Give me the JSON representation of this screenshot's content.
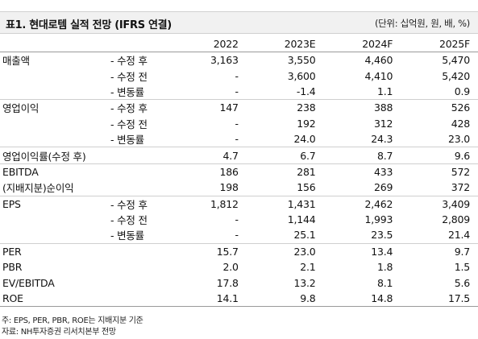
{
  "header": {
    "title": "표1. 현대로템 실적 전망 (IFRS 연결)",
    "unit": "(단위: 십억원, 원, 배, %)"
  },
  "columns": [
    "2022",
    "2023E",
    "2024F",
    "2025F"
  ],
  "rows": [
    {
      "label": "매출액",
      "sub": "- 수정 후",
      "values": [
        "3,163",
        "3,550",
        "4,460",
        "5,470"
      ]
    },
    {
      "label": "",
      "sub": "- 수정 전",
      "values": [
        "-",
        "3,600",
        "4,410",
        "5,420"
      ]
    },
    {
      "label": "",
      "sub": "- 변동률",
      "values": [
        "-",
        "-1.4",
        "1.1",
        "0.9"
      ]
    },
    {
      "label": "영업이익",
      "sub": "- 수정 후",
      "values": [
        "147",
        "238",
        "388",
        "526"
      ]
    },
    {
      "label": "",
      "sub": "- 수정 전",
      "values": [
        "-",
        "192",
        "312",
        "428"
      ]
    },
    {
      "label": "",
      "sub": "- 변동률",
      "values": [
        "-",
        "24.0",
        "24.3",
        "23.0"
      ]
    },
    {
      "label": "영업이익률(수정 후)",
      "sub": "",
      "values": [
        "4.7",
        "6.7",
        "8.7",
        "9.6"
      ]
    },
    {
      "label": "EBITDA",
      "sub": "",
      "values": [
        "186",
        "281",
        "433",
        "572"
      ]
    },
    {
      "label": "(지배지분)순이익",
      "sub": "",
      "values": [
        "198",
        "156",
        "269",
        "372"
      ]
    },
    {
      "label": "EPS",
      "sub": "- 수정 후",
      "values": [
        "1,812",
        "1,431",
        "2,462",
        "3,409"
      ]
    },
    {
      "label": "",
      "sub": "- 수정 전",
      "values": [
        "-",
        "1,144",
        "1,993",
        "2,809"
      ]
    },
    {
      "label": "",
      "sub": "- 변동률",
      "values": [
        "-",
        "25.1",
        "23.5",
        "21.4"
      ]
    },
    {
      "label": "PER",
      "sub": "",
      "values": [
        "15.7",
        "23.0",
        "13.4",
        "9.7"
      ]
    },
    {
      "label": "PBR",
      "sub": "",
      "values": [
        "2.0",
        "2.1",
        "1.8",
        "1.5"
      ]
    },
    {
      "label": "EV/EBITDA",
      "sub": "",
      "values": [
        "17.8",
        "13.2",
        "8.1",
        "5.6"
      ]
    },
    {
      "label": "ROE",
      "sub": "",
      "values": [
        "14.1",
        "9.8",
        "14.8",
        "17.5"
      ]
    }
  ],
  "notes": [
    "주: EPS, PER, PBR, ROE는 지배지분 기준",
    "자료: NH투자증권 리서치본부 전망"
  ]
}
